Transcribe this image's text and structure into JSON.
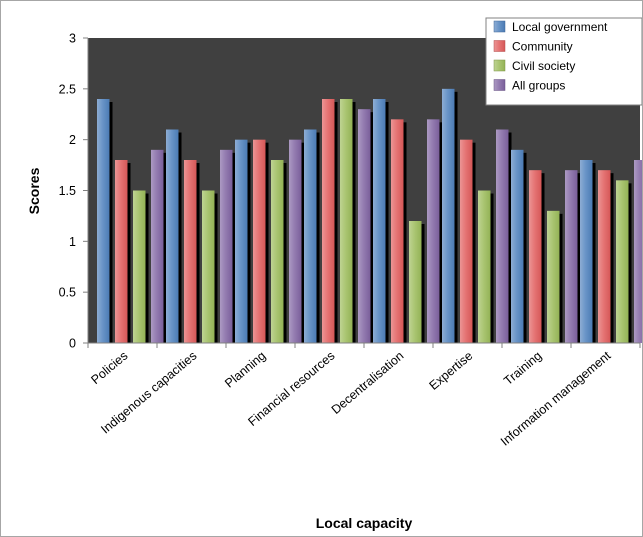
{
  "chart_data": {
    "type": "bar",
    "title": "",
    "xlabel": "Local capacity",
    "ylabel": "Scores",
    "ylim": [
      0,
      3
    ],
    "yticks": [
      "0",
      "0.5",
      "1",
      "1.5",
      "2",
      "2.5",
      "3"
    ],
    "grid": false,
    "legend_position": "top-right",
    "plot_background": "#404040",
    "categories": [
      "Policies",
      "Indigenous capacities",
      "Planning",
      "Financial resources",
      "Decentralisation",
      "Expertise",
      "Training",
      "Information management"
    ],
    "series": [
      {
        "name": "Local government",
        "color": "#4f81bd",
        "values": [
          2.4,
          2.1,
          2.0,
          2.1,
          2.4,
          2.5,
          1.9,
          1.8
        ]
      },
      {
        "name": "Community",
        "color": "#e05c5c",
        "values": [
          1.8,
          1.8,
          2.0,
          2.4,
          2.2,
          2.0,
          1.7,
          1.7
        ]
      },
      {
        "name": "Civil society",
        "color": "#9bbb59",
        "values": [
          1.5,
          1.5,
          1.8,
          2.4,
          1.2,
          1.5,
          1.3,
          1.6
        ]
      },
      {
        "name": "All groups",
        "color": "#8064a2",
        "values": [
          1.9,
          1.9,
          2.0,
          2.3,
          2.2,
          2.1,
          1.7,
          1.8
        ]
      }
    ]
  }
}
